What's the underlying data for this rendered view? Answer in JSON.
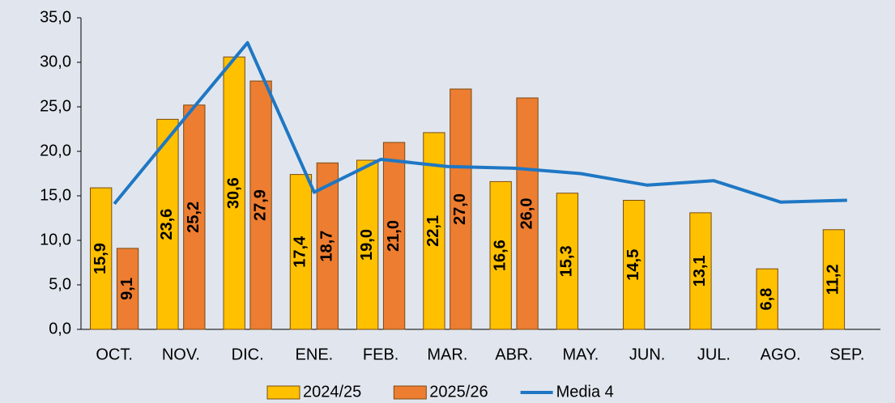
{
  "chart_data": {
    "type": "bar",
    "categories": [
      "OCT.",
      "NOV.",
      "DIC.",
      "ENE.",
      "FEB.",
      "MAR.",
      "ABR.",
      "MAY.",
      "JUN.",
      "JUL.",
      "AGO.",
      "SEP."
    ],
    "series": [
      {
        "name": "2024/25",
        "color": "#ffc000",
        "values": [
          15.9,
          23.6,
          30.6,
          17.4,
          19.0,
          22.1,
          16.6,
          15.3,
          14.5,
          13.1,
          6.8,
          11.2
        ],
        "value_labels": [
          "15,9",
          "23,6",
          "30,6",
          "17,4",
          "19,0",
          "22,1",
          "16,6",
          "15,3",
          "14,5",
          "13,1",
          "6,8",
          "11,2"
        ]
      },
      {
        "name": "2025/26",
        "color": "#ed7d31",
        "values": [
          9.1,
          25.2,
          27.9,
          18.7,
          21.0,
          27.0,
          26.0,
          null,
          null,
          null,
          null,
          null
        ],
        "value_labels": [
          "9,1",
          "25,2",
          "27,9",
          "18,7",
          "21,0",
          "27,0",
          "26,0",
          null,
          null,
          null,
          null,
          null
        ]
      },
      {
        "name": "Media 4",
        "type": "line",
        "color": "#1f77c4",
        "values": [
          14.1,
          23.2,
          32.2,
          15.4,
          19.1,
          18.3,
          18.1,
          17.5,
          16.2,
          16.7,
          14.3,
          14.5
        ]
      }
    ],
    "ylim": [
      0,
      35
    ],
    "yticks": [
      {
        "value": 0,
        "label": "0,0"
      },
      {
        "value": 5,
        "label": "5,0"
      },
      {
        "value": 10,
        "label": "10,0"
      },
      {
        "value": 15,
        "label": "15,0"
      },
      {
        "value": 20,
        "label": "20,0"
      },
      {
        "value": 25,
        "label": "25,0"
      },
      {
        "value": 30,
        "label": "30,0"
      },
      {
        "value": 35,
        "label": "35,0"
      }
    ],
    "legend": "bottom"
  }
}
